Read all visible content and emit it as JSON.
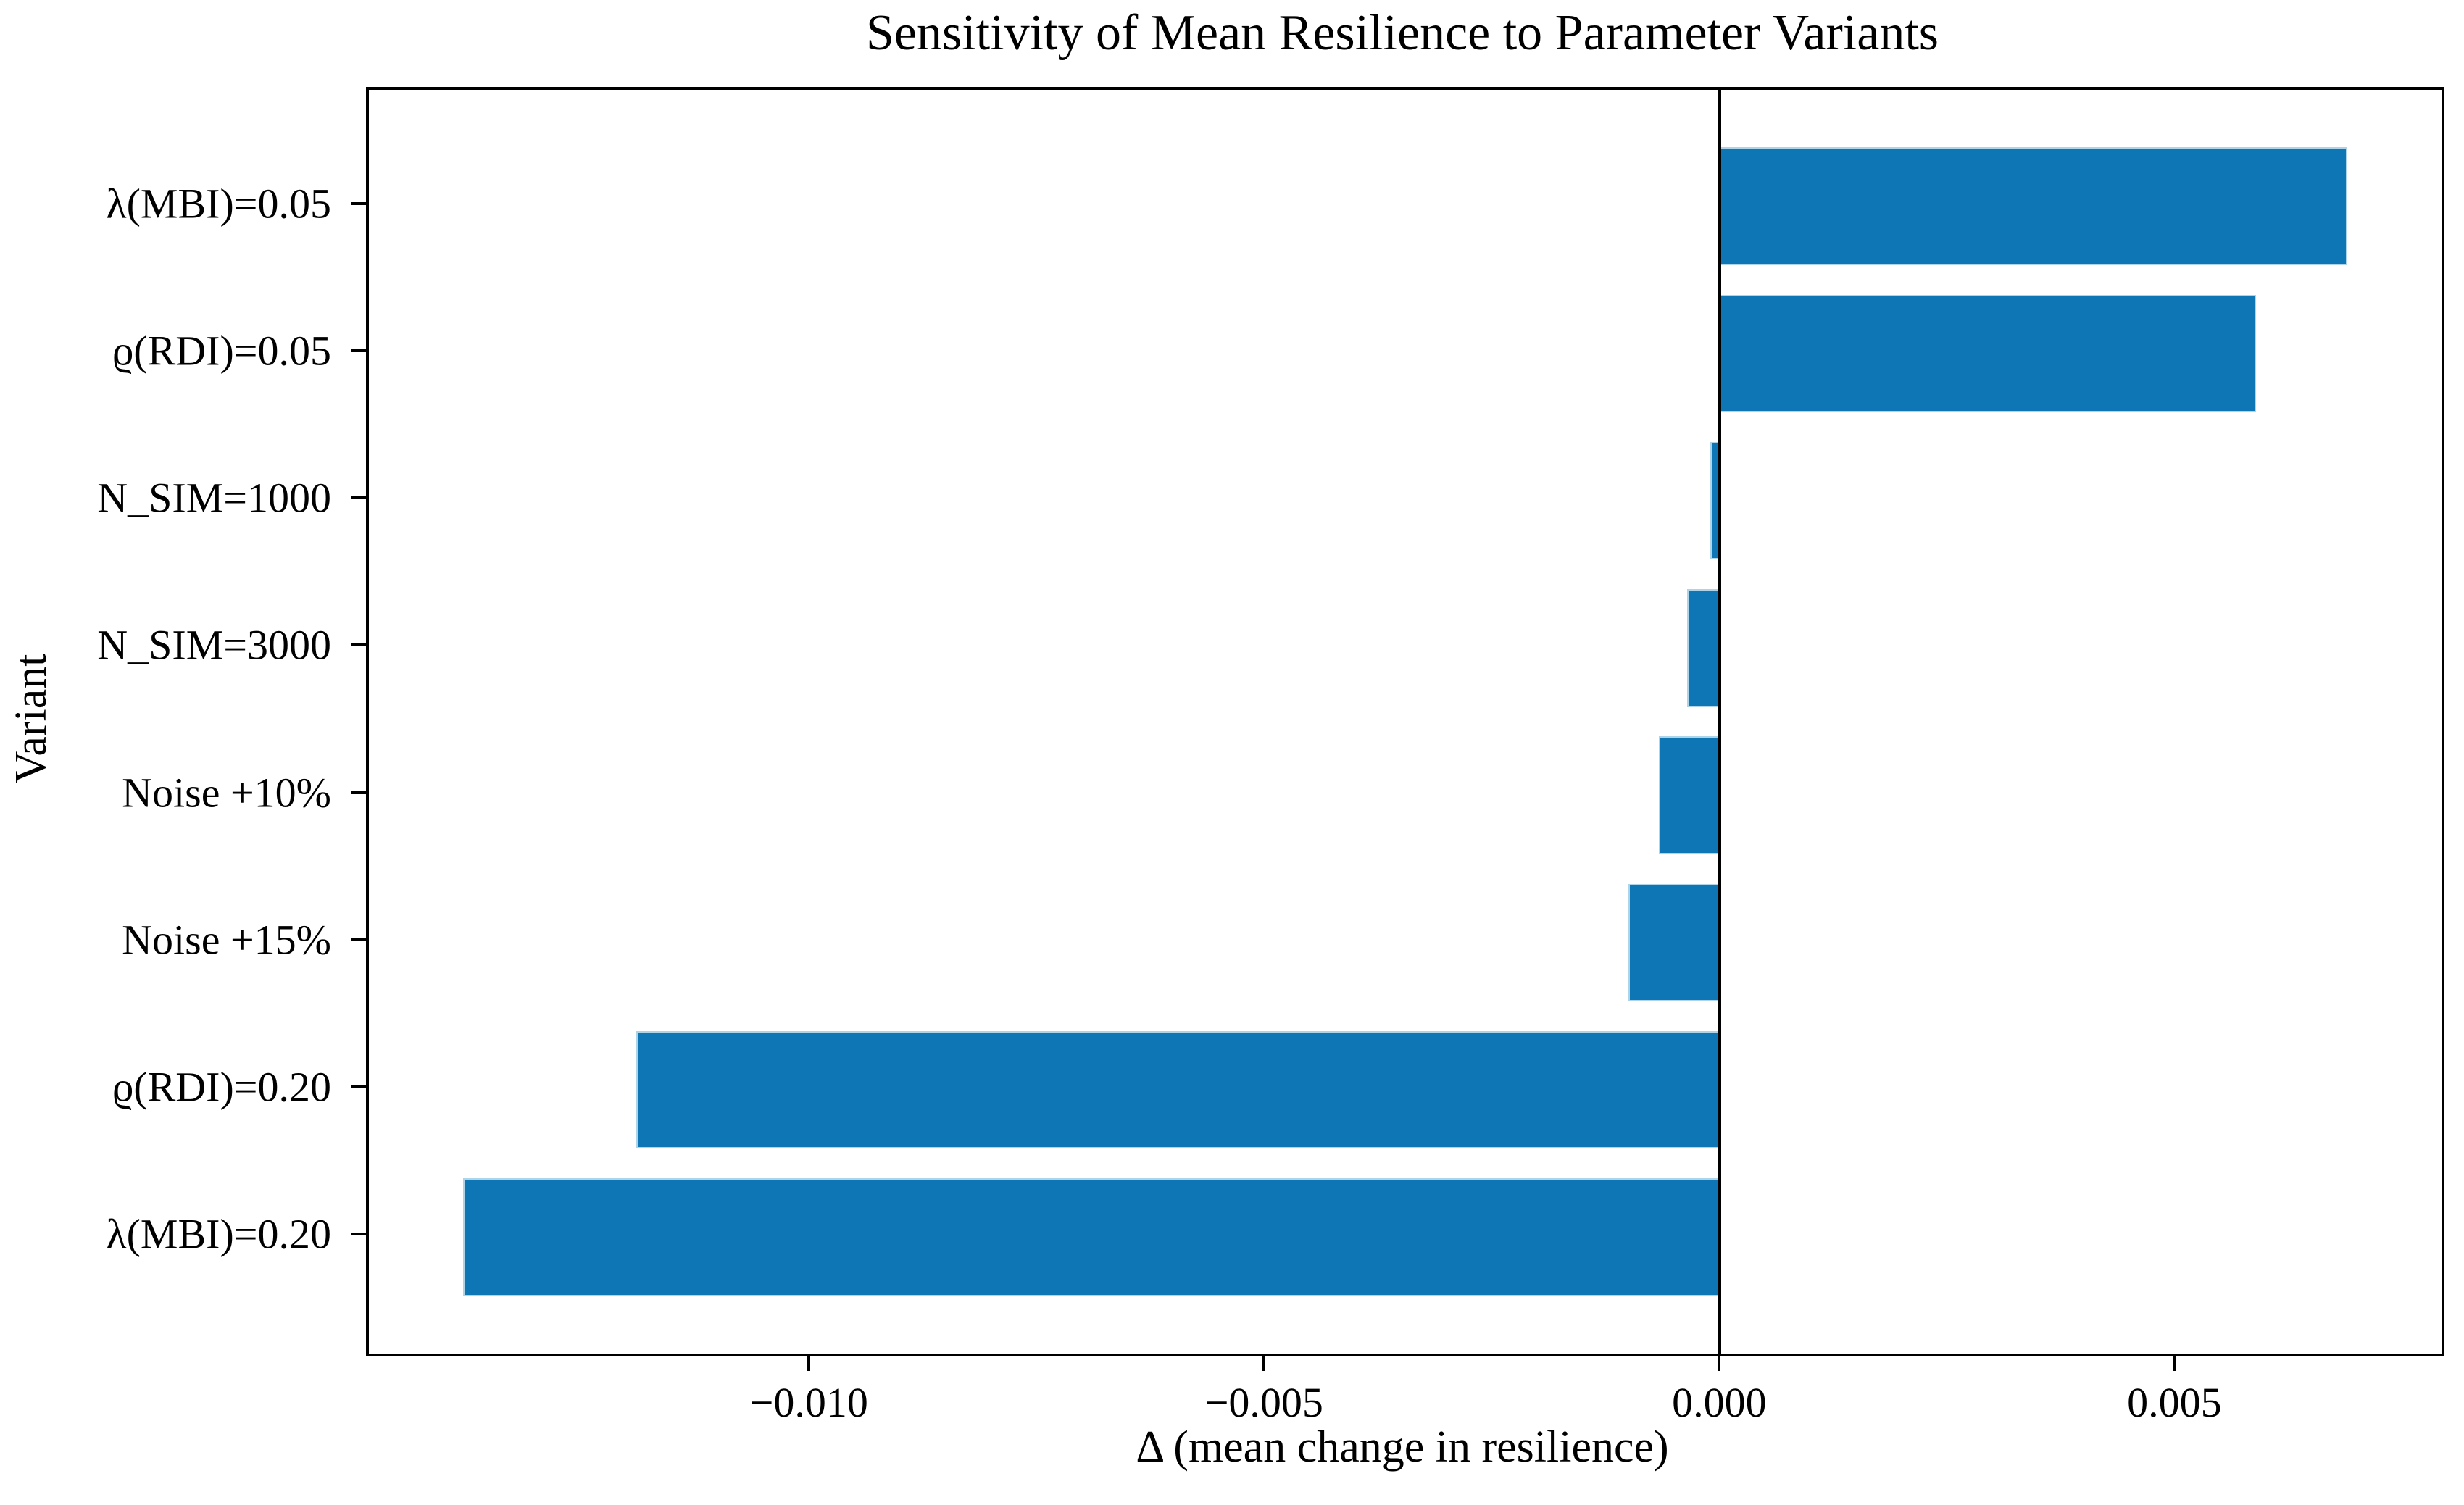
{
  "chart_data": {
    "type": "bar",
    "orientation": "horizontal",
    "title": "Sensitivity of Mean Resilience to Parameter Variants",
    "xlabel": "Δ (mean change in resilience)",
    "ylabel": "Variant",
    "categories": [
      "λ(MBI)=0.05",
      "ϱ(RDI)=0.05",
      "N_SIM=1000",
      "N_SIM=3000",
      "Noise +10%",
      "Noise +15%",
      "ϱ(RDI)=0.20",
      "λ(MBI)=0.20"
    ],
    "values": [
      0.0069,
      0.0059,
      -0.0001,
      -0.00035,
      -0.00066,
      -0.001,
      -0.0119,
      -0.0138
    ],
    "xlim": [
      -0.014835,
      0.007935
    ],
    "xticks": {
      "values": [
        -0.01,
        -0.005,
        0.0,
        0.005
      ],
      "labels": [
        "−0.010",
        "−0.005",
        "0.000",
        "0.005"
      ]
    },
    "zero_line_value": 0,
    "bar_color": "#0f76b5",
    "bar_edge_color": "#aed4ea",
    "axis_color": "#000000",
    "legend": "none",
    "grid": false
  }
}
